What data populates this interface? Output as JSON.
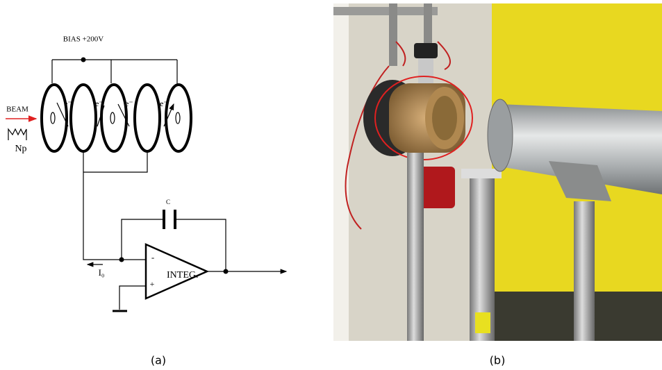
{
  "panel_a": {
    "bias": "BIAS +200V",
    "beam": "BEAM",
    "particles": "Np",
    "electrons": [
      "e⁻",
      "e⁻",
      "e⁻",
      "e⁻"
    ],
    "capacitor": "C",
    "current": "I₀",
    "amplifier": "INTEG.",
    "inverting": "-",
    "non_inverting": "+",
    "caption": "(a)"
  },
  "panel_b": {
    "caption": "(b)"
  }
}
